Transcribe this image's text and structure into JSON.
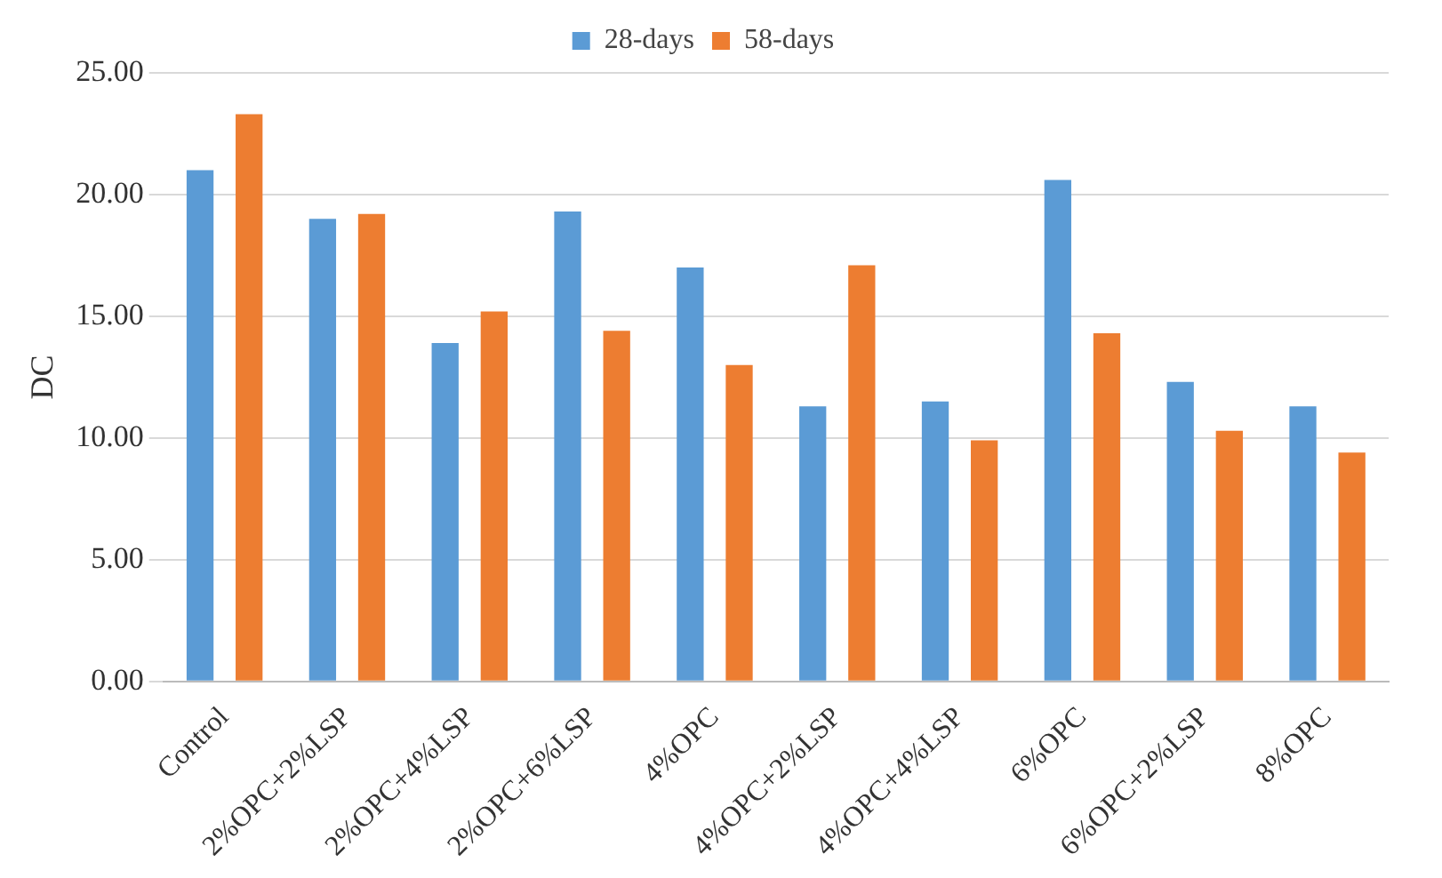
{
  "chart_data": {
    "type": "bar",
    "ylabel": "DC",
    "categories": [
      "Control",
      "2%OPC+2%LSP",
      "2%OPC+4%LSP",
      "2%OPC+6%LSP",
      "4%OPC",
      "4%OPC+2%LSP",
      "4%OPC+4%LSP",
      "6%OPC",
      "6%OPC+2%LSP",
      "8%OPC"
    ],
    "series": [
      {
        "name": "28-days",
        "color": "#5b9bd5",
        "values": [
          21.0,
          19.0,
          13.9,
          19.3,
          17.0,
          11.3,
          11.5,
          20.6,
          12.3,
          11.3
        ]
      },
      {
        "name": "58-days",
        "color": "#ed7d31",
        "values": [
          23.3,
          19.2,
          15.2,
          14.4,
          13.0,
          17.1,
          9.9,
          14.3,
          10.3,
          9.4
        ]
      }
    ],
    "ylim": [
      0,
      25
    ],
    "yticks": [
      {
        "value": 0,
        "label": "0.00"
      },
      {
        "value": 5,
        "label": "5.00"
      },
      {
        "value": 10,
        "label": "10.00"
      },
      {
        "value": 15,
        "label": "15.00"
      },
      {
        "value": 20,
        "label": "20.00"
      },
      {
        "value": 25,
        "label": "25.00"
      }
    ],
    "grid": "y",
    "legend": "top"
  }
}
